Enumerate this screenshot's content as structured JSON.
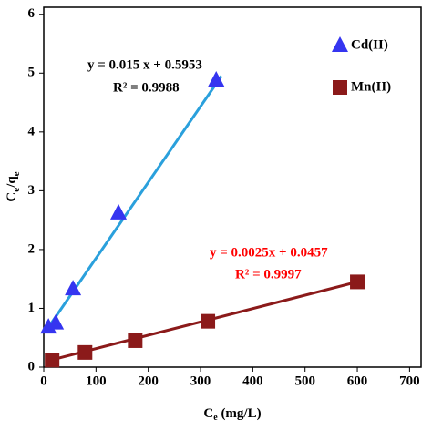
{
  "chart_data": {
    "type": "scatter",
    "xlabel": [
      "C",
      "e",
      " (mg/L)"
    ],
    "ylabel": [
      "C",
      "e",
      "/q",
      "e"
    ],
    "xlim": [
      0,
      722
    ],
    "ylim": [
      0,
      6.12
    ],
    "xticks": [
      0,
      100,
      200,
      300,
      400,
      500,
      600,
      700
    ],
    "yticks": [
      0,
      1,
      2,
      3,
      4,
      5,
      6
    ],
    "series": [
      {
        "name": "Cd(II)",
        "marker": "triangle",
        "color": "#3535f0",
        "line_color": "#2aa0dc",
        "x": [
          9,
          23,
          56,
          143,
          330
        ],
        "values": [
          0.68,
          0.75,
          1.33,
          2.62,
          4.88
        ],
        "trend_x": [
          3,
          340
        ],
        "trend_values": [
          0.6,
          4.95
        ],
        "equation": "y = 0.015  x + 0.5953",
        "r2": "R² = 0.9988",
        "label_color": "#000000"
      },
      {
        "name": "Mn(II)",
        "marker": "square",
        "color": "#8b1a1a",
        "line_color": "#8b1a1a",
        "x": [
          16,
          79,
          175,
          314,
          600
        ],
        "values": [
          0.12,
          0.25,
          0.45,
          0.78,
          1.45
        ],
        "trend_x": [
          5,
          600
        ],
        "trend_values": [
          0.1,
          1.45
        ],
        "equation": "y = 0.0025x + 0.0457",
        "r2": "R² = 0.9997",
        "label_color": "#ff0000"
      }
    ]
  }
}
